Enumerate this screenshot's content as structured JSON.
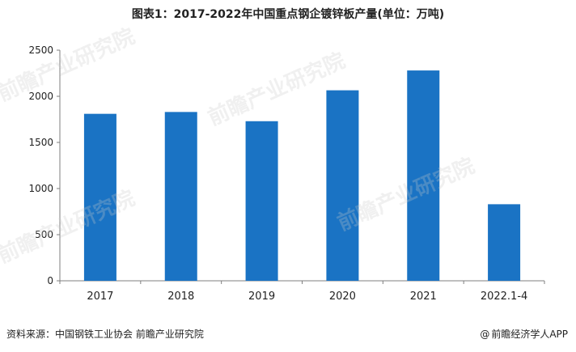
{
  "chart_data": {
    "type": "bar",
    "title": "图表1：2017-2022年中国重点钢企镀锌板产量(单位：万吨)",
    "categories": [
      "2017",
      "2018",
      "2019",
      "2020",
      "2021",
      "2022.1-4"
    ],
    "values": [
      1810,
      1830,
      1730,
      2065,
      2280,
      830
    ],
    "ylim": [
      0,
      2500
    ],
    "yticks": [
      0,
      500,
      1000,
      1500,
      2000,
      2500
    ],
    "xlabel": "",
    "ylabel": "",
    "grid": false,
    "bar_color": "#1a73c4"
  },
  "footer": {
    "source": "资料来源：中国钢铁工业协会 前瞻产业研究院",
    "credit_symbol": "@",
    "credit": "前瞻经济学人APP"
  },
  "watermark": {
    "text": "前瞻产业研究院"
  }
}
